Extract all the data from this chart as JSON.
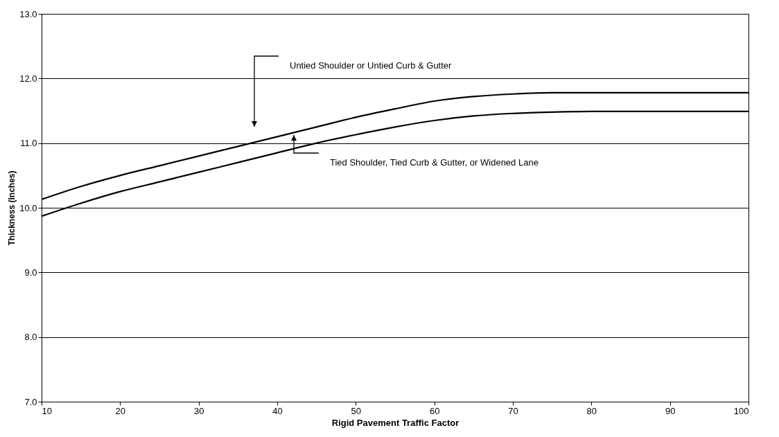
{
  "chart_data": {
    "type": "line",
    "xlabel": "Rigid Pavement Traffic Factor",
    "ylabel": "Thickness (Inches)",
    "x": [
      10,
      15,
      20,
      25,
      30,
      35,
      40,
      45,
      50,
      55,
      60,
      65,
      70,
      75,
      80,
      90,
      100
    ],
    "series": [
      {
        "color": "#000000",
        "values": [
          10.13,
          10.33,
          10.5,
          10.65,
          10.8,
          10.95,
          11.1,
          11.25,
          11.4,
          11.53,
          11.65,
          11.72,
          11.76,
          11.78,
          11.78,
          11.78,
          11.78
        ]
      },
      {
        "color": "#000000",
        "values": [
          9.87,
          10.07,
          10.25,
          10.4,
          10.55,
          10.7,
          10.85,
          11.0,
          11.13,
          11.25,
          11.35,
          11.42,
          11.46,
          11.48,
          11.49,
          11.49,
          11.49
        ]
      }
    ],
    "annotations": [
      "Untied Shoulder or Untied Curb & Gutter",
      "Tied Shoulder, Tied Curb & Gutter, or Widened Lane"
    ],
    "xlim": [
      10,
      100
    ],
    "xticks": [
      10,
      20,
      30,
      40,
      50,
      60,
      70,
      80,
      90,
      100
    ],
    "ylim": [
      7,
      13
    ],
    "yticks": [
      {
        "value": 7,
        "label": "7.0"
      },
      {
        "value": 8,
        "label": "8.0"
      },
      {
        "value": 9,
        "label": "9.0"
      },
      {
        "value": 10,
        "label": "10.0"
      },
      {
        "value": 11,
        "label": "11.0"
      },
      {
        "value": 12,
        "label": "12.0"
      },
      {
        "value": 13,
        "label": "13.0"
      }
    ],
    "grid": "y",
    "legend": false,
    "marker": "none",
    "line_style": "solid"
  }
}
